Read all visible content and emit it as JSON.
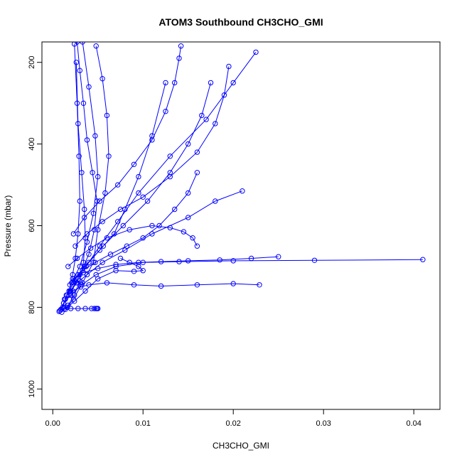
{
  "chart_data": {
    "type": "scatter",
    "title": "ATOM3 Southbound CH3CHO_GMI",
    "xlabel": "CH3CHO_GMI",
    "ylabel": "Pressure (mbar)",
    "xlim": [
      -0.0012,
      0.0429
    ],
    "ylim": [
      1050,
      150
    ],
    "y_reversed": true,
    "x_ticks": [
      "0.00",
      "0.01",
      "0.02",
      "0.03",
      "0.04"
    ],
    "x_tick_values": [
      0,
      0.01,
      0.02,
      0.03,
      0.04
    ],
    "y_ticks": [
      "200",
      "400",
      "600",
      "800",
      "1000"
    ],
    "y_tick_values": [
      200,
      400,
      600,
      800,
      1000
    ],
    "series_color": "#0000ff",
    "grid": false,
    "series": [
      {
        "x": [
          0.0007,
          0.0012,
          0.0018,
          0.0022,
          0.0025,
          0.0028,
          0.003,
          0.0029,
          0.0027,
          0.0024
        ],
        "y": [
          810,
          790,
          760,
          720,
          680,
          620,
          540,
          430,
          300,
          155
        ]
      },
      {
        "x": [
          0.0009,
          0.0014,
          0.0021,
          0.003,
          0.0038,
          0.0045,
          0.005,
          0.0047,
          0.004,
          0.0033
        ],
        "y": [
          805,
          780,
          740,
          700,
          640,
          570,
          480,
          380,
          260,
          150
        ]
      },
      {
        "x": [
          0.0011,
          0.0016,
          0.0024,
          0.0035,
          0.0052,
          0.0068,
          0.008,
          0.0095,
          0.011,
          0.0125
        ],
        "y": [
          800,
          770,
          735,
          700,
          660,
          620,
          560,
          480,
          380,
          250
        ]
      },
      {
        "x": [
          0.0012,
          0.002,
          0.0032,
          0.0048,
          0.007,
          0.01,
          0.014,
          0.02,
          0.029,
          0.041
        ],
        "y": [
          790,
          770,
          745,
          720,
          700,
          690,
          688,
          686,
          685,
          683
        ]
      },
      {
        "x": [
          0.0013,
          0.0019,
          0.0027,
          0.0038,
          0.0055,
          0.008,
          0.011,
          0.015,
          0.018,
          0.021
        ],
        "y": [
          780,
          760,
          740,
          720,
          690,
          660,
          620,
          580,
          540,
          515
        ]
      },
      {
        "x": [
          0.0015,
          0.0022,
          0.0031,
          0.004,
          0.006,
          0.009,
          0.012,
          0.016,
          0.02,
          0.0229
        ],
        "y": [
          770,
          760,
          750,
          745,
          740,
          745,
          748,
          745,
          742,
          745
        ]
      },
      {
        "x": [
          0.0016,
          0.0023,
          0.0033,
          0.0045,
          0.005,
          0.0058,
          0.0062,
          0.006,
          0.0055,
          0.0048
        ],
        "y": [
          800,
          780,
          740,
          690,
          610,
          520,
          430,
          330,
          240,
          160
        ]
      },
      {
        "x": [
          0.0018,
          0.0026,
          0.0037,
          0.0052,
          0.0072,
          0.0095,
          0.013,
          0.017,
          0.02,
          0.0225
        ],
        "y": [
          770,
          740,
          700,
          650,
          590,
          520,
          430,
          340,
          250,
          175
        ]
      },
      {
        "x": [
          0.002,
          0.003,
          0.004,
          0.0046,
          0.0049,
          0.0044,
          0.0038,
          0.0034,
          0.003,
          0.0027
        ],
        "y": [
          760,
          720,
          670,
          610,
          540,
          470,
          390,
          300,
          220,
          150
        ]
      },
      {
        "x": [
          0.0021,
          0.0033,
          0.0047,
          0.0064,
          0.0082,
          0.01,
          0.0118,
          0.0135,
          0.015,
          0.016
        ],
        "y": [
          740,
          710,
          690,
          670,
          650,
          630,
          600,
          560,
          520,
          470
        ]
      },
      {
        "x": [
          0.0022,
          0.0034,
          0.005,
          0.007,
          0.0095,
          0.012,
          0.015,
          0.0185,
          0.022,
          0.025
        ],
        "y": [
          730,
          715,
          705,
          695,
          690,
          688,
          686,
          684,
          680,
          676
        ]
      },
      {
        "x": [
          0.001,
          0.0017,
          0.0024,
          0.003,
          0.0034,
          0.0036,
          0.0035,
          0.0032,
          0.0028,
          0.0026
        ],
        "y": [
          812,
          795,
          770,
          735,
          690,
          630,
          560,
          470,
          350,
          200
        ]
      },
      {
        "x": [
          0.0014,
          0.0024,
          0.0036,
          0.005,
          0.007,
          0.009,
          0.01,
          0.0095,
          0.0085,
          0.0075
        ],
        "y": [
          805,
          785,
          760,
          730,
          710,
          712,
          710,
          700,
          690,
          680
        ]
      },
      {
        "x": [
          0.0025,
          0.0038,
          0.0055,
          0.0075,
          0.01,
          0.013,
          0.016,
          0.018,
          0.019,
          0.0195
        ],
        "y": [
          650,
          620,
          590,
          560,
          530,
          480,
          420,
          350,
          280,
          210
        ]
      },
      {
        "x": [
          0.0019,
          0.0028,
          0.004,
          0.0056,
          0.0078,
          0.0105,
          0.013,
          0.015,
          0.0165,
          0.0175
        ],
        "y": [
          745,
          720,
          690,
          650,
          600,
          540,
          470,
          400,
          330,
          250
        ]
      },
      {
        "x": [
          0.0017,
          0.0027,
          0.0042,
          0.006,
          0.0085,
          0.011,
          0.013,
          0.0145,
          0.0155,
          0.016
        ],
        "y": [
          700,
          680,
          655,
          630,
          610,
          600,
          605,
          615,
          630,
          650
        ]
      },
      {
        "x": [
          0.0023,
          0.0035,
          0.0052,
          0.0072,
          0.009,
          0.011,
          0.0125,
          0.0135,
          0.014,
          0.0142
        ],
        "y": [
          620,
          580,
          540,
          500,
          450,
          390,
          320,
          250,
          190,
          160
        ]
      },
      {
        "x": [
          0.0008,
          0.0013,
          0.002,
          0.0028,
          0.0036,
          0.0043,
          0.0048,
          0.005,
          0.0049,
          0.0046
        ],
        "y": [
          808,
          803,
          803,
          803,
          803,
          803,
          803,
          803,
          803,
          803
        ]
      }
    ]
  }
}
